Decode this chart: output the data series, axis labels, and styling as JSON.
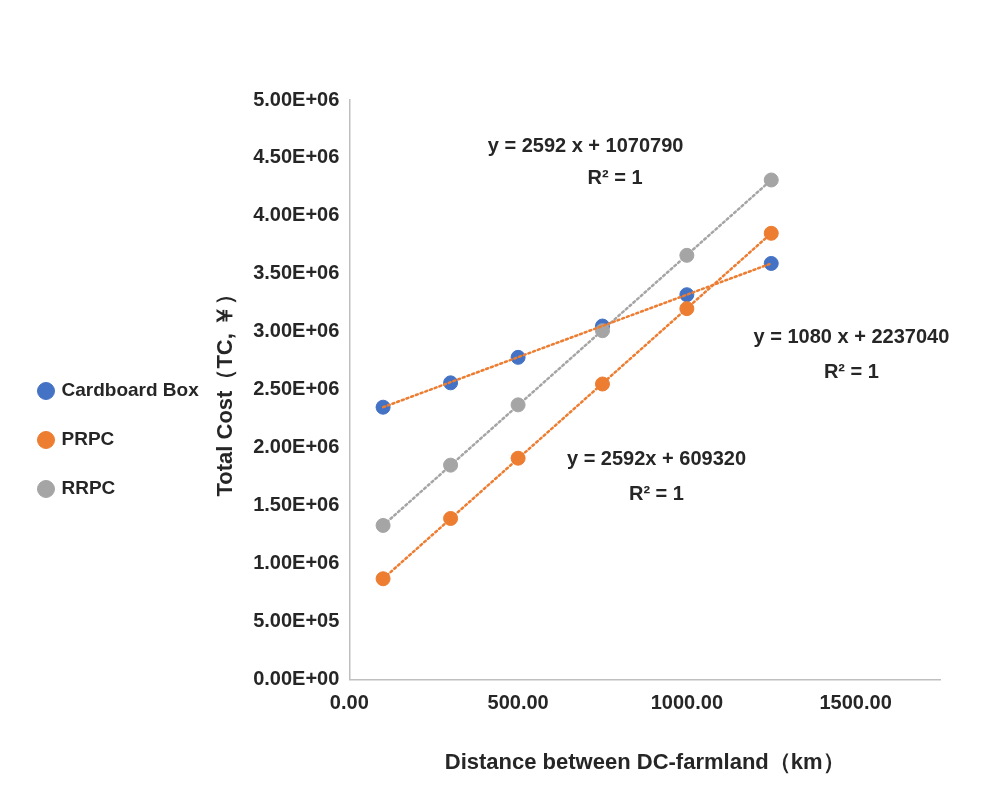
{
  "chart_data": {
    "type": "scatter",
    "xlabel": "Distance between DC-farmland（km）",
    "ylabel": "Total Cost（TC, ￥）",
    "xlim": [
      0,
      1750
    ],
    "xticks": [
      {
        "value": 0,
        "label": "0.00"
      },
      {
        "value": 500,
        "label": "500.00"
      },
      {
        "value": 1000,
        "label": "1000.00"
      },
      {
        "value": 1500,
        "label": "1500.00"
      }
    ],
    "ylim": [
      0,
      5000000
    ],
    "yticks": [
      {
        "value": 0,
        "label": "0.00E+00"
      },
      {
        "value": 500000,
        "label": "5.00E+05"
      },
      {
        "value": 1000000,
        "label": "1.00E+06"
      },
      {
        "value": 1500000,
        "label": "1.50E+06"
      },
      {
        "value": 2000000,
        "label": "2.00E+06"
      },
      {
        "value": 2500000,
        "label": "2.50E+06"
      },
      {
        "value": 3000000,
        "label": "3.00E+06"
      },
      {
        "value": 3500000,
        "label": "3.50E+06"
      },
      {
        "value": 4000000,
        "label": "4.00E+06"
      },
      {
        "value": 4500000,
        "label": "4.50E+06"
      },
      {
        "value": 5000000,
        "label": "5.00E+06"
      }
    ],
    "x": [
      100,
      300,
      500,
      750,
      1000,
      1250
    ],
    "grid": false,
    "legend": "left",
    "marker": "circle",
    "series": [
      {
        "name": "Cardboard Box",
        "color": "#4472c4",
        "values": [
          2350000,
          2560000,
          2780000,
          3050000,
          3320000,
          3590000
        ]
      },
      {
        "name": "PRPC",
        "color": "#ed7d31",
        "values": [
          870000,
          1390000,
          1910000,
          2550000,
          3200000,
          3850000
        ]
      },
      {
        "name": "RRPC",
        "color": "#a5a5a5",
        "values": [
          1330000,
          1850000,
          2370000,
          3010000,
          3660000,
          4310000
        ]
      },
      {
        "type": "line",
        "line_style": "dotted",
        "marker": "none",
        "color": "#ed7d31",
        "values": [
          2350000,
          null,
          null,
          null,
          null,
          3590000
        ]
      },
      {
        "type": "line",
        "line_style": "dotted",
        "marker": "none",
        "color": "#ed7d31",
        "values": [
          870000,
          null,
          null,
          null,
          null,
          3850000
        ]
      },
      {
        "type": "line",
        "line_style": "dotted",
        "marker": "none",
        "color": "#a5a5a5",
        "values": [
          1330000,
          null,
          null,
          null,
          null,
          4310000
        ]
      }
    ],
    "annotations": [
      "y = 2592 x + 1070790",
      "R² = 1",
      "y = 1080 x + 2237040",
      "R² = 1",
      "y = 2592x + 609320",
      "R² = 1"
    ]
  }
}
